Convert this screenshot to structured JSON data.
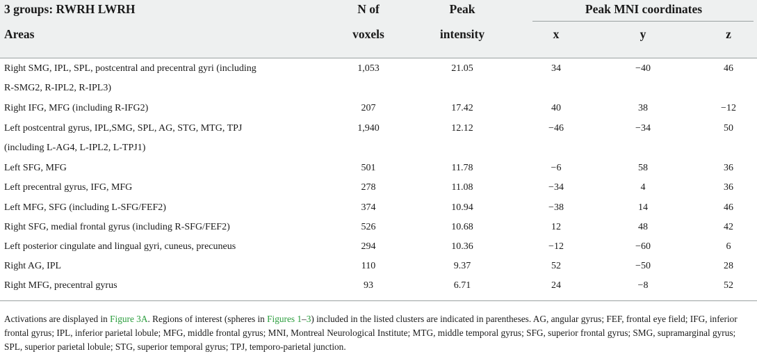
{
  "header": {
    "group_title": "3 groups: RWRH LWRH",
    "areas": "Areas",
    "n_voxels_line1": "N of",
    "n_voxels_line2": "voxels",
    "peak_line1": "Peak",
    "peak_line2": "intensity",
    "mni": "Peak MNI coordinates",
    "x": "x",
    "y": "y",
    "z": "z"
  },
  "rows": [
    {
      "area": "Right SMG, IPL, SPL, postcentral and precentral gyri (including",
      "area2": "R-SMG2, R-IPL2, R-IPL3)",
      "n": "1,053",
      "peak": "21.05",
      "x": "34",
      "y": "−40",
      "z": "46"
    },
    {
      "area": "Right IFG, MFG (including R-IFG2)",
      "area2": "",
      "n": "207",
      "peak": "17.42",
      "x": "40",
      "y": "38",
      "z": "−12"
    },
    {
      "area": "Left postcentral gyrus, IPL,SMG, SPL, AG, STG, MTG, TPJ",
      "area2": "(including L-AG4, L-IPL2, L-TPJ1)",
      "n": "1,940",
      "peak": "12.12",
      "x": "−46",
      "y": "−34",
      "z": "50"
    },
    {
      "area": "Left SFG, MFG",
      "area2": "",
      "n": "501",
      "peak": "11.78",
      "x": "−6",
      "y": "58",
      "z": "36"
    },
    {
      "area": "Left precentral gyrus, IFG, MFG",
      "area2": "",
      "n": "278",
      "peak": "11.08",
      "x": "−34",
      "y": "4",
      "z": "36"
    },
    {
      "area": "Left MFG, SFG (including L-SFG/FEF2)",
      "area2": "",
      "n": "374",
      "peak": "10.94",
      "x": "−38",
      "y": "14",
      "z": "46"
    },
    {
      "area": "Right SFG, medial frontal gyrus (including R-SFG/FEF2)",
      "area2": "",
      "n": "526",
      "peak": "10.68",
      "x": "12",
      "y": "48",
      "z": "42"
    },
    {
      "area": "Left posterior cingulate and lingual gyri, cuneus, precuneus",
      "area2": "",
      "n": "294",
      "peak": "10.36",
      "x": "−12",
      "y": "−60",
      "z": "6"
    },
    {
      "area": "Right AG, IPL",
      "area2": "",
      "n": "110",
      "peak": "9.37",
      "x": "52",
      "y": "−50",
      "z": "28"
    },
    {
      "area": "Right MFG, precentral gyrus",
      "area2": "",
      "n": "93",
      "peak": "6.71",
      "x": "24",
      "y": "−8",
      "z": "52"
    }
  ],
  "footnote": {
    "part1": "Activations are displayed in ",
    "link1": "Figure 3A",
    "part2": ". Regions of interest (spheres in ",
    "link2": "Figures 1",
    "dash": "–",
    "link3": "3",
    "part3": ") included in the listed clusters are indicated in parentheses. AG, angular gyrus; FEF, frontal eye field; IFG, inferior frontal gyrus; IPL, inferior parietal lobule; MFG, middle frontal gyrus; MNI, Montreal Neurological Institute; MTG, middle temporal gyrus; SFG, superior frontal gyrus; SMG, supramarginal gyrus; SPL, superior parietal lobule; STG, superior temporal gyrus; TPJ, temporo-parietal junction."
  }
}
